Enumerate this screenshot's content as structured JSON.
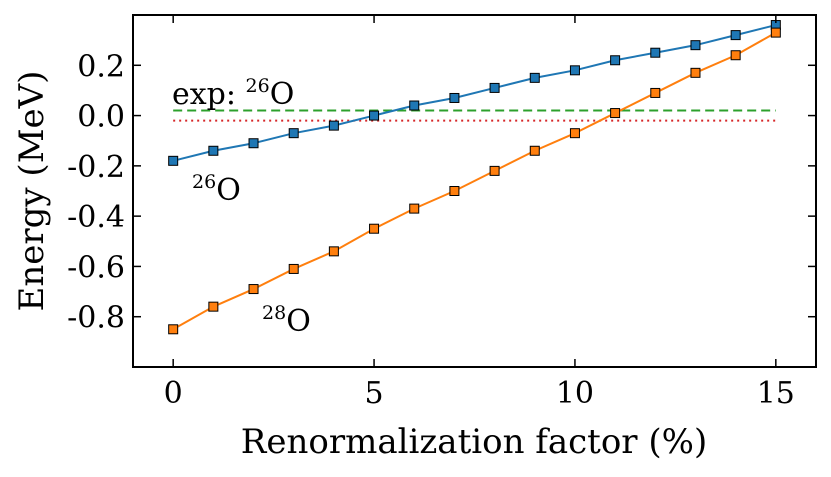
{
  "chart_data": {
    "type": "line",
    "xlabel": "Renormalization factor (%)",
    "ylabel": "Energy (MeV)",
    "xlim": [
      -1,
      16
    ],
    "ylim": [
      -1.0,
      0.4
    ],
    "xticks": [
      0,
      5,
      10,
      15
    ],
    "yticks": [
      0.2,
      0.0,
      -0.2,
      -0.4,
      -0.6,
      -0.8
    ],
    "xtick_labels": [
      "0",
      "5",
      "10",
      "15"
    ],
    "ytick_labels": [
      "0.2",
      "0.0",
      "-0.2",
      "-0.4",
      "-0.6",
      "-0.8"
    ],
    "grid": false,
    "legend": "none",
    "series": [
      {
        "label_parts": {
          "mass": "26",
          "element": "O"
        },
        "color": "#1f77b4",
        "marker": "square",
        "x": [
          0,
          1,
          2,
          3,
          4,
          5,
          6,
          7,
          8,
          9,
          10,
          11,
          12,
          13,
          14,
          15
        ],
        "y": [
          -0.18,
          -0.14,
          -0.11,
          -0.07,
          -0.04,
          0.0,
          0.04,
          0.07,
          0.11,
          0.15,
          0.18,
          0.22,
          0.25,
          0.28,
          0.32,
          0.36
        ]
      },
      {
        "label_parts": {
          "mass": "28",
          "element": "O"
        },
        "color": "#ff7f0e",
        "marker": "square",
        "x": [
          0,
          1,
          2,
          3,
          4,
          5,
          6,
          7,
          8,
          9,
          10,
          11,
          12,
          13,
          14,
          15
        ],
        "y": [
          -0.85,
          -0.76,
          -0.69,
          -0.61,
          -0.54,
          -0.45,
          -0.37,
          -0.3,
          -0.22,
          -0.14,
          -0.07,
          0.01,
          0.09,
          0.17,
          0.24,
          0.33
        ]
      }
    ],
    "reference_lines": [
      {
        "y": 0.02,
        "x_range": [
          0,
          15
        ],
        "color": "#2ca02c",
        "style": "dashed"
      },
      {
        "y": -0.02,
        "x_range": [
          0,
          15
        ],
        "color": "#d62728",
        "style": "dotted"
      }
    ],
    "annotations": {
      "exp_prefix": "exp: ",
      "exp_mass": "26",
      "exp_element": "O",
      "o26_mass": "26",
      "o26_element": "O",
      "o28_mass": "28",
      "o28_element": "O"
    }
  }
}
